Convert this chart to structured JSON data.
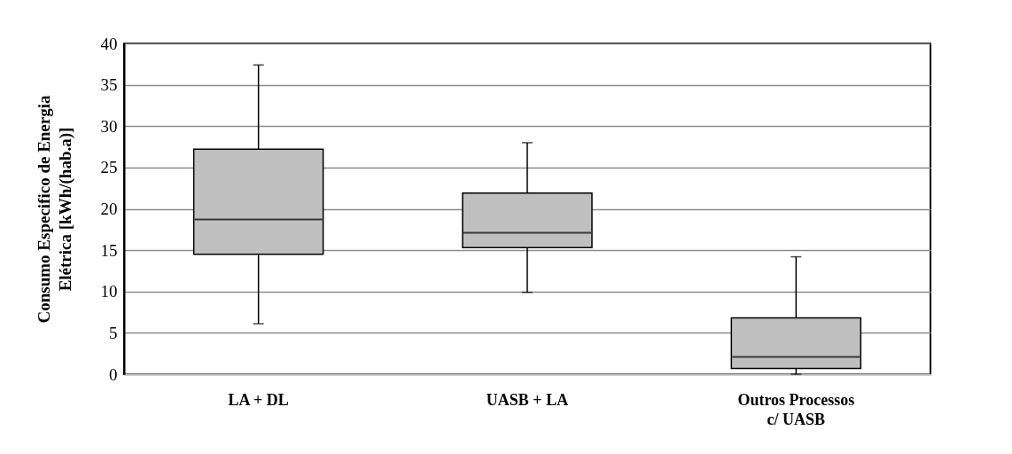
{
  "chart_data": {
    "type": "box",
    "ylabel": "Consumo Especifico de Energia\nElétrica [kWh/(hab.a)]",
    "categories": [
      "LA + DL",
      "UASB + LA",
      "Outros Processos\nc/ UASB"
    ],
    "boxes": [
      {
        "low": 6.1,
        "q1": 14.5,
        "median": 18.7,
        "q3": 27.2,
        "high": 37.4
      },
      {
        "low": 9.9,
        "q1": 15.3,
        "median": 17.1,
        "q3": 21.9,
        "high": 28.0
      },
      {
        "low": 0,
        "q1": 0.7,
        "median": 2.1,
        "q3": 6.8,
        "high": 14.2
      }
    ],
    "color": "#bfbfbf",
    "ylim": [
      0,
      40
    ],
    "yticks": [
      0,
      5,
      10,
      15,
      20,
      25,
      30,
      35,
      40
    ],
    "grid": "y"
  }
}
